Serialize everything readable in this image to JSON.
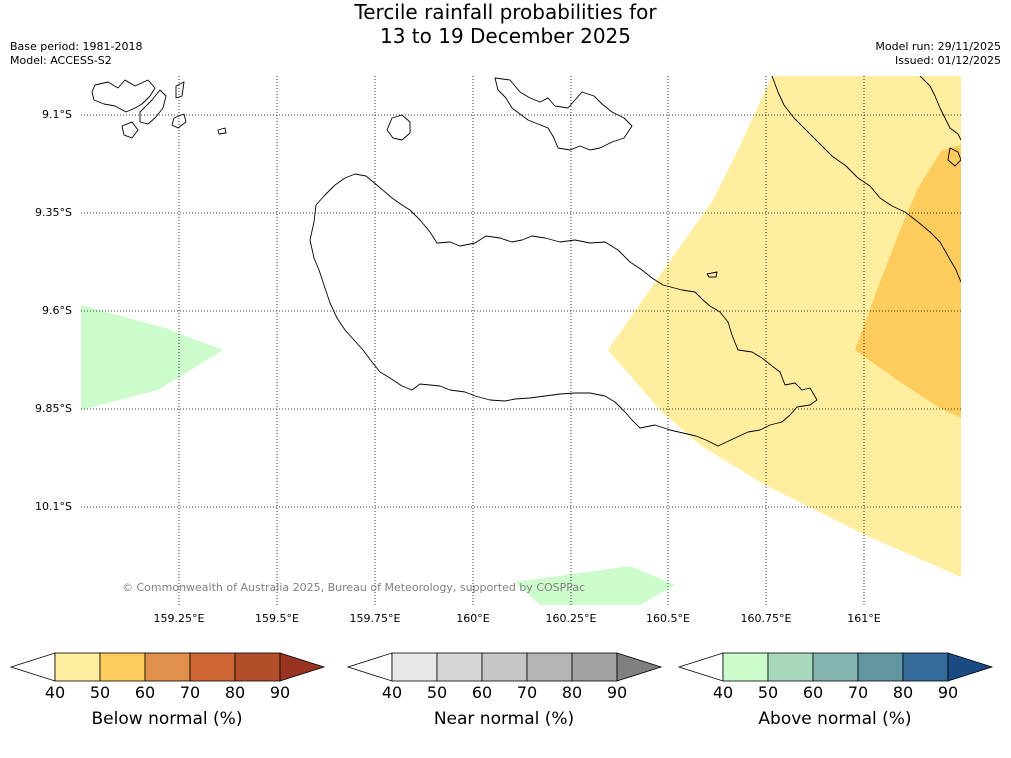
{
  "title": {
    "line1": "Tercile rainfall probabilities for",
    "line2": "13 to 19 December 2025"
  },
  "meta": {
    "base_period": "Base period: 1981-2018",
    "model": "Model: ACCESS-S2",
    "model_run": "Model run: 29/11/2025",
    "issued": "Issued: 01/12/2025"
  },
  "axes": {
    "lat_labels": [
      "9.1°S",
      "9.35°S",
      "9.6°S",
      "9.85°S",
      "10.1°S"
    ],
    "lon_labels": [
      "159.25°E",
      "159.5°E",
      "159.75°E",
      "160°E",
      "160.25°E",
      "160.5°E",
      "160.75°E",
      "161°E"
    ]
  },
  "copyright": "© Commonwealth of Australia 2025, Bureau of Meteorology, supported by COSPPac",
  "colorbars": {
    "below": {
      "label": "Below normal (%)",
      "ticks": [
        "40",
        "50",
        "60",
        "70",
        "80",
        "90"
      ],
      "colors": [
        "#ffffff",
        "#ffeda0",
        "#fecc5c",
        "#e0904a",
        "#cd6535",
        "#b24f2a",
        "#983321"
      ]
    },
    "near": {
      "label": "Near normal (%)",
      "ticks": [
        "40",
        "50",
        "60",
        "70",
        "80",
        "90"
      ],
      "colors": [
        "#ffffff",
        "#e8e8e8",
        "#d6d6d6",
        "#c6c6c6",
        "#b4b4b4",
        "#a2a2a2",
        "#808080"
      ]
    },
    "above": {
      "label": "Above normal (%)",
      "ticks": [
        "40",
        "50",
        "60",
        "70",
        "80",
        "90"
      ],
      "colors": [
        "#ffffff",
        "#ccfccc",
        "#a6d8bc",
        "#84b4b0",
        "#6096a2",
        "#336a9a",
        "#1a4a82"
      ]
    }
  },
  "legend_colors": {
    "below_40_50": "#ffeda0",
    "below_50_60": "#fecc5c",
    "above_40_50": "#ccfccc"
  }
}
